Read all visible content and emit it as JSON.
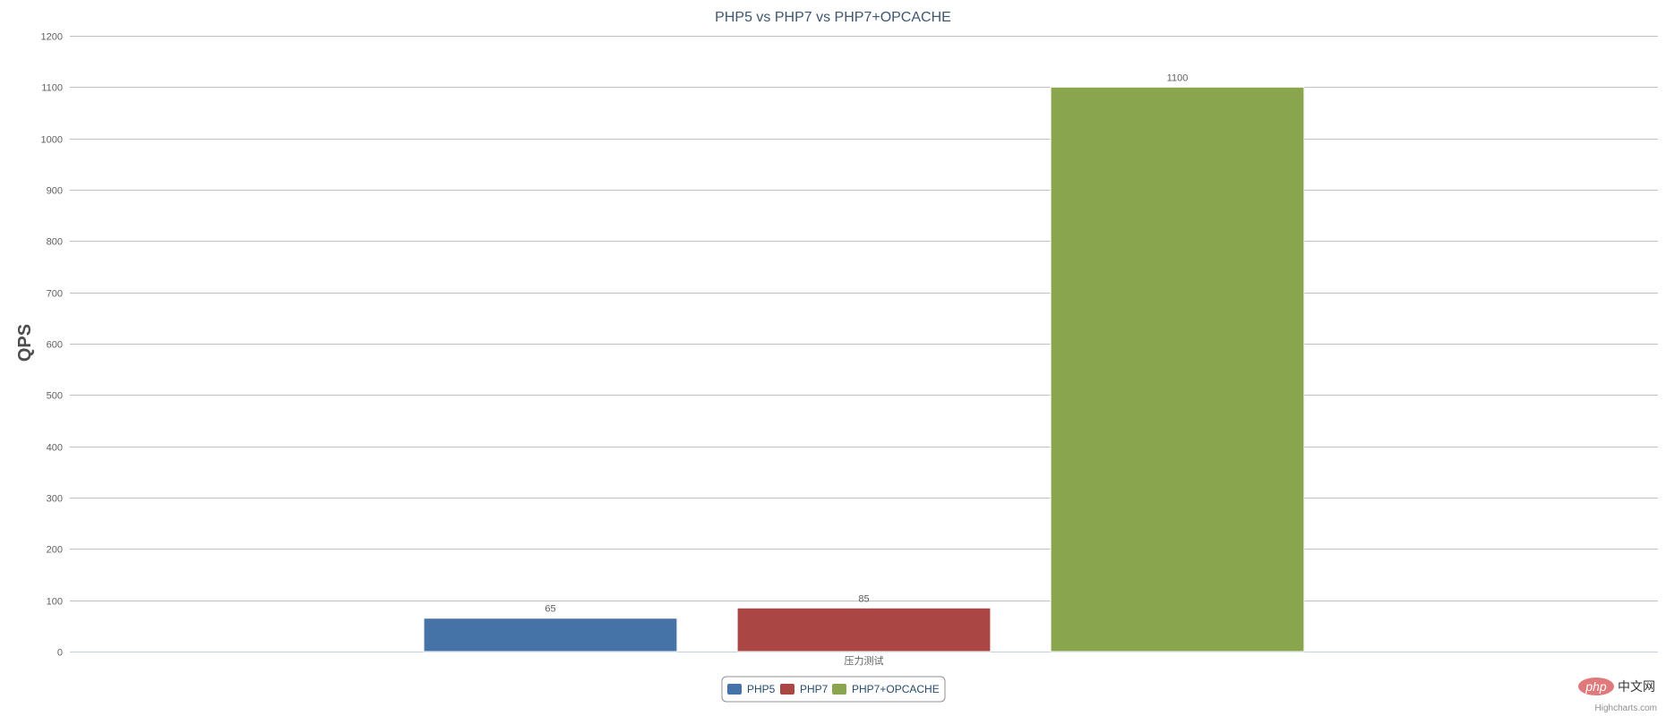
{
  "chart_data": {
    "type": "bar",
    "title": "PHP5 vs PHP7 vs PHP7+OPCACHE",
    "categories": [
      "压力测试"
    ],
    "series": [
      {
        "name": "PHP5",
        "values": [
          65
        ],
        "color": "#4572a7"
      },
      {
        "name": "PHP7",
        "values": [
          85
        ],
        "color": "#aa4643"
      },
      {
        "name": "PHP7+OPCACHE",
        "values": [
          1100
        ],
        "color": "#89a54e"
      }
    ],
    "xlabel": "",
    "ylabel": "QPS",
    "ylim": [
      0,
      1200
    ],
    "yticks": [
      0,
      100,
      200,
      300,
      400,
      500,
      600,
      700,
      800,
      900,
      1000,
      1100,
      1200
    ],
    "grid": true,
    "legend_position": "bottom-center",
    "credits": "Highcharts.com"
  },
  "watermark": {
    "text": "php",
    "suffix": "中文网"
  }
}
